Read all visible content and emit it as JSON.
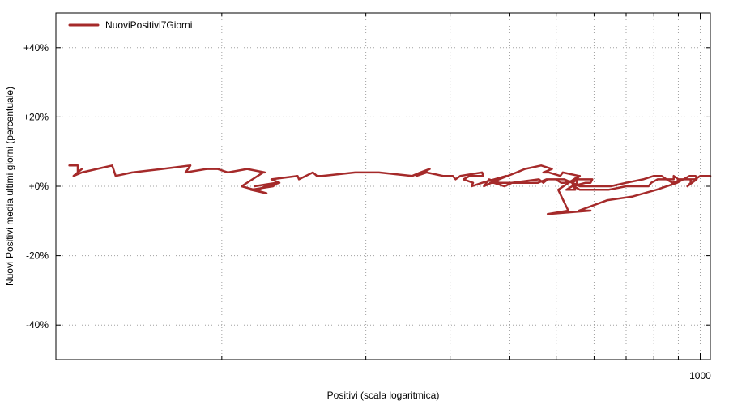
{
  "chart_data": {
    "type": "line",
    "title": "",
    "xlabel": "Positivi (scala logaritmica)",
    "ylabel": "Nuovi Positivi media ultimi giorni (percentuale)",
    "x_scale": "log",
    "xlim": [
      45,
      1050
    ],
    "ylim": [
      -50,
      50
    ],
    "x_ticks": [
      1000
    ],
    "x_tick_labels": [
      "1000"
    ],
    "x_minor_gridlines": [
      100,
      200,
      300,
      400,
      500,
      600,
      700,
      800,
      900,
      1000
    ],
    "y_ticks": [
      -40,
      -20,
      0,
      20,
      40
    ],
    "y_tick_labels": [
      "-40%",
      "-20%",
      "+0%",
      "+20%",
      "+40%"
    ],
    "grid": true,
    "legend_position": "top-left",
    "colors": {
      "series": "#a52a2a"
    },
    "series": [
      {
        "name": "NuoviPositivi7Giorni",
        "color": "#a52a2a",
        "points": [
          [
            48,
            6
          ],
          [
            50,
            6
          ],
          [
            50,
            4
          ],
          [
            51,
            5
          ],
          [
            49,
            3
          ],
          [
            51,
            4
          ],
          [
            59,
            6
          ],
          [
            60,
            3
          ],
          [
            65,
            4
          ],
          [
            75,
            5
          ],
          [
            86,
            6
          ],
          [
            84,
            4
          ],
          [
            93,
            5
          ],
          [
            98,
            5
          ],
          [
            103,
            4
          ],
          [
            113,
            5
          ],
          [
            123,
            4
          ],
          [
            122,
            4
          ],
          [
            110,
            0
          ],
          [
            124,
            -2
          ],
          [
            115,
            -1
          ],
          [
            128,
            0
          ],
          [
            131,
            1
          ],
          [
            117,
            0
          ],
          [
            130,
            1
          ],
          [
            118,
            -1
          ],
          [
            132,
            1
          ],
          [
            127,
            2
          ],
          [
            144,
            3
          ],
          [
            145,
            2
          ],
          [
            155,
            4
          ],
          [
            158,
            3
          ],
          [
            162,
            3
          ],
          [
            190,
            4
          ],
          [
            213,
            4
          ],
          [
            250,
            3
          ],
          [
            260,
            4
          ],
          [
            272,
            5
          ],
          [
            255,
            3
          ],
          [
            268,
            4
          ],
          [
            290,
            3
          ],
          [
            304,
            3
          ],
          [
            308,
            2
          ],
          [
            315,
            3
          ],
          [
            350,
            4
          ],
          [
            352,
            3
          ],
          [
            330,
            3
          ],
          [
            320,
            2
          ],
          [
            335,
            1
          ],
          [
            333,
            0
          ],
          [
            350,
            1
          ],
          [
            393,
            3
          ],
          [
            353,
            0
          ],
          [
            362,
            2
          ],
          [
            380,
            1
          ],
          [
            364,
            1
          ],
          [
            413,
            4
          ],
          [
            430,
            5
          ],
          [
            465,
            6
          ],
          [
            490,
            5
          ],
          [
            470,
            4
          ],
          [
            483,
            4
          ],
          [
            510,
            3
          ],
          [
            516,
            4
          ],
          [
            558,
            3
          ],
          [
            505,
            -1
          ],
          [
            517,
            -4
          ],
          [
            530,
            -7
          ],
          [
            480,
            -8
          ],
          [
            590,
            -7
          ],
          [
            558,
            -7
          ],
          [
            640,
            -4
          ],
          [
            720,
            -3
          ],
          [
            810,
            -1
          ],
          [
            895,
            1
          ],
          [
            950,
            3
          ],
          [
            978,
            3
          ],
          [
            983,
            2
          ],
          [
            940,
            0
          ],
          [
            955,
            1
          ],
          [
            955,
            2
          ],
          [
            970,
            2
          ],
          [
            900,
            2
          ],
          [
            880,
            3
          ],
          [
            880,
            2
          ],
          [
            855,
            2
          ],
          [
            815,
            2
          ],
          [
            790,
            1
          ],
          [
            780,
            0
          ],
          [
            745,
            0
          ],
          [
            700,
            0
          ],
          [
            643,
            -1
          ],
          [
            560,
            -1
          ],
          [
            545,
            0
          ],
          [
            553,
            1
          ],
          [
            550,
            2
          ],
          [
            560,
            3
          ],
          [
            548,
            2
          ],
          [
            560,
            2
          ],
          [
            590,
            2
          ],
          [
            595,
            2
          ],
          [
            590,
            1
          ],
          [
            585,
            1
          ],
          [
            576,
            1
          ],
          [
            540,
            0
          ],
          [
            525,
            -1
          ],
          [
            548,
            -1
          ],
          [
            540,
            1
          ],
          [
            554,
            2
          ],
          [
            520,
            1
          ],
          [
            512,
            1
          ],
          [
            499,
            2
          ],
          [
            477,
            2
          ],
          [
            458,
            1
          ],
          [
            448,
            1
          ],
          [
            430,
            1
          ],
          [
            418,
            1
          ],
          [
            413,
            1
          ],
          [
            390,
            1
          ],
          [
            370,
            1
          ],
          [
            390,
            0
          ],
          [
            404,
            1
          ],
          [
            460,
            2
          ],
          [
            470,
            1
          ],
          [
            480,
            2
          ],
          [
            520,
            2
          ],
          [
            540,
            1
          ],
          [
            560,
            0
          ],
          [
            600,
            0
          ],
          [
            650,
            0
          ],
          [
            700,
            1
          ],
          [
            760,
            2
          ],
          [
            800,
            3
          ],
          [
            830,
            3
          ],
          [
            850,
            2
          ],
          [
            875,
            1
          ],
          [
            915,
            2
          ],
          [
            950,
            2
          ],
          [
            975,
            2
          ],
          [
            1000,
            3
          ],
          [
            1050,
            3
          ]
        ]
      }
    ]
  }
}
